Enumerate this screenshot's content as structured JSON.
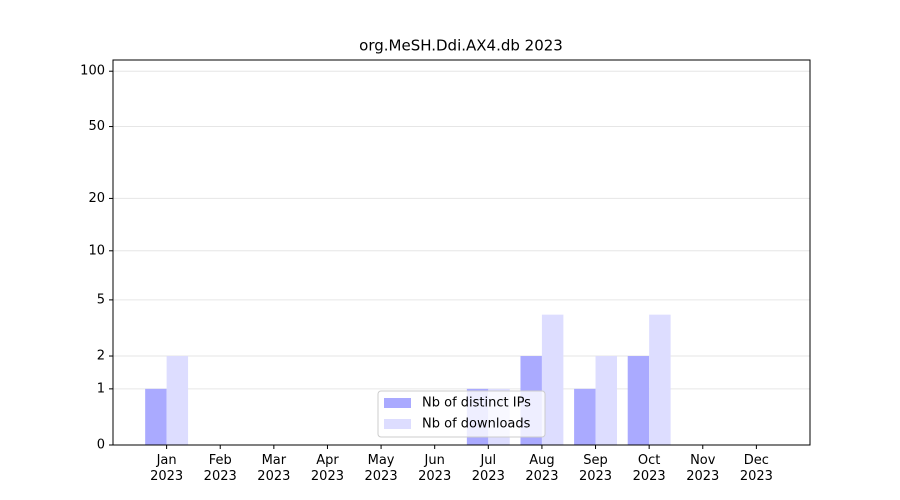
{
  "chart_data": {
    "type": "bar",
    "title": "org.MeSH.Ddi.AX4.db 2023",
    "categories": [
      "Jan\n2023",
      "Feb\n2023",
      "Mar\n2023",
      "Apr\n2023",
      "May\n2023",
      "Jun\n2023",
      "Jul\n2023",
      "Aug\n2023",
      "Sep\n2023",
      "Oct\n2023",
      "Nov\n2023",
      "Dec\n2023"
    ],
    "series": [
      {
        "name": "Nb of distinct IPs",
        "color": "#aaaaff",
        "values": [
          1,
          0,
          0,
          0,
          0,
          0,
          1,
          2,
          1,
          2,
          0,
          0
        ]
      },
      {
        "name": "Nb of downloads",
        "color": "#ddddff",
        "values": [
          2,
          0,
          0,
          0,
          0,
          0,
          1,
          4,
          2,
          4,
          0,
          0
        ]
      }
    ],
    "y_scale": "log1p",
    "ylim": [
      0,
      115
    ],
    "yticks": [
      0,
      1,
      2,
      5,
      10,
      20,
      50,
      100
    ],
    "grid": true,
    "legend": "lower center"
  }
}
